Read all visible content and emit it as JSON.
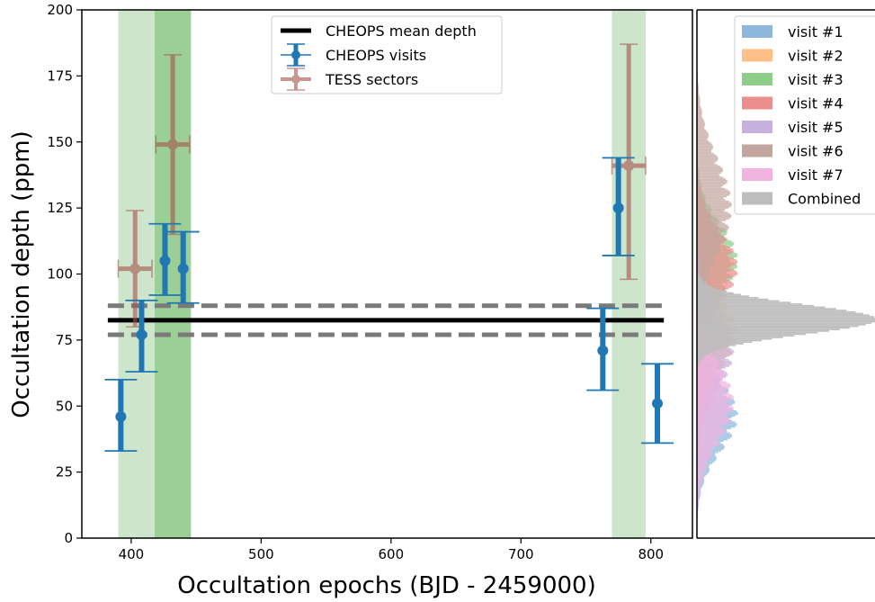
{
  "chart_data": [
    {
      "type": "scatter",
      "xlabel": "Occultation epochs (BJD - 2459000)",
      "ylabel": "Occultation depth (ppm)",
      "xlim": [
        362,
        832
      ],
      "ylim": [
        0,
        200
      ],
      "x_ticks": [
        "400",
        "500",
        "600",
        "700",
        "800"
      ],
      "y_ticks": [
        "0",
        "25",
        "50",
        "75",
        "100",
        "125",
        "150",
        "175",
        "200"
      ],
      "shaded_regions": [
        {
          "x0": 390,
          "x1": 418,
          "color": "#cde6cb"
        },
        {
          "x0": 418,
          "x1": 446,
          "color": "#9ccf96"
        },
        {
          "x0": 770,
          "x1": 796,
          "color": "#cde6cb"
        }
      ],
      "mean_depth": {
        "name": "CHEOPS mean depth",
        "value": 82.5,
        "lower": 77,
        "upper": 88,
        "x_range": [
          382,
          810
        ]
      },
      "series": [
        {
          "name": "CHEOPS visits",
          "color": "#1f77b4",
          "points": [
            {
              "x": 392,
              "y": 46,
              "ylo": 33,
              "yhi": 60
            },
            {
              "x": 408,
              "y": 77,
              "ylo": 63,
              "yhi": 90
            },
            {
              "x": 426,
              "y": 105,
              "ylo": 92,
              "yhi": 119
            },
            {
              "x": 440,
              "y": 102,
              "ylo": 89,
              "yhi": 116
            },
            {
              "x": 763,
              "y": 71,
              "ylo": 56,
              "yhi": 87
            },
            {
              "x": 775,
              "y": 125,
              "ylo": 107,
              "yhi": 144
            },
            {
              "x": 805,
              "y": 51,
              "ylo": 36,
              "yhi": 66
            }
          ]
        },
        {
          "name": "TESS sectors",
          "color": "#a8524b",
          "points": [
            {
              "x": 403,
              "y": 102,
              "xlo": 390,
              "xhi": 416,
              "ylo": 80,
              "yhi": 124
            },
            {
              "x": 432,
              "y": 149,
              "xlo": 419,
              "xhi": 445,
              "ylo": 115,
              "yhi": 183
            },
            {
              "x": 783,
              "y": 141,
              "xlo": 770,
              "xhi": 796,
              "ylo": 98,
              "yhi": 187
            }
          ]
        }
      ]
    },
    {
      "type": "histogram",
      "orientation": "horizontal",
      "ylim": [
        0,
        200
      ],
      "legend": [
        {
          "label": "visit #1",
          "color": "#8db8dc"
        },
        {
          "label": "visit #2",
          "color": "#ffbf87"
        },
        {
          "label": "visit #3",
          "color": "#8ecd8a"
        },
        {
          "label": "visit #4",
          "color": "#ec8e8e"
        },
        {
          "label": "visit #5",
          "color": "#c6b0dd"
        },
        {
          "label": "visit #6",
          "color": "#c3a59f"
        },
        {
          "label": "visit #7",
          "color": "#f1b3e0"
        },
        {
          "label": "Combined",
          "color": "#bdbdbd"
        }
      ],
      "distributions": [
        {
          "name": "visit #1",
          "color": "#8db8dc",
          "mean": 46,
          "sd": 13.5,
          "peak": 20
        },
        {
          "name": "visit #2",
          "color": "#ffbf87",
          "mean": 77,
          "sd": 13.5,
          "peak": 20
        },
        {
          "name": "visit #3",
          "color": "#8ecd8a",
          "mean": 105,
          "sd": 13.5,
          "peak": 20
        },
        {
          "name": "visit #4",
          "color": "#ec8e8e",
          "mean": 102,
          "sd": 13.5,
          "peak": 20
        },
        {
          "name": "visit #5",
          "color": "#c6b0dd",
          "mean": 71,
          "sd": 15.5,
          "peak": 18
        },
        {
          "name": "visit #6",
          "color": "#c3a59f",
          "mean": 125,
          "sd": 18.5,
          "peak": 17
        },
        {
          "name": "visit #7",
          "color": "#f1b3e0",
          "mean": 51,
          "sd": 15,
          "peak": 18
        },
        {
          "name": "Combined",
          "color": "#bdbdbd",
          "mean": 82.5,
          "sd": 5.6,
          "peak": 100
        }
      ]
    }
  ]
}
